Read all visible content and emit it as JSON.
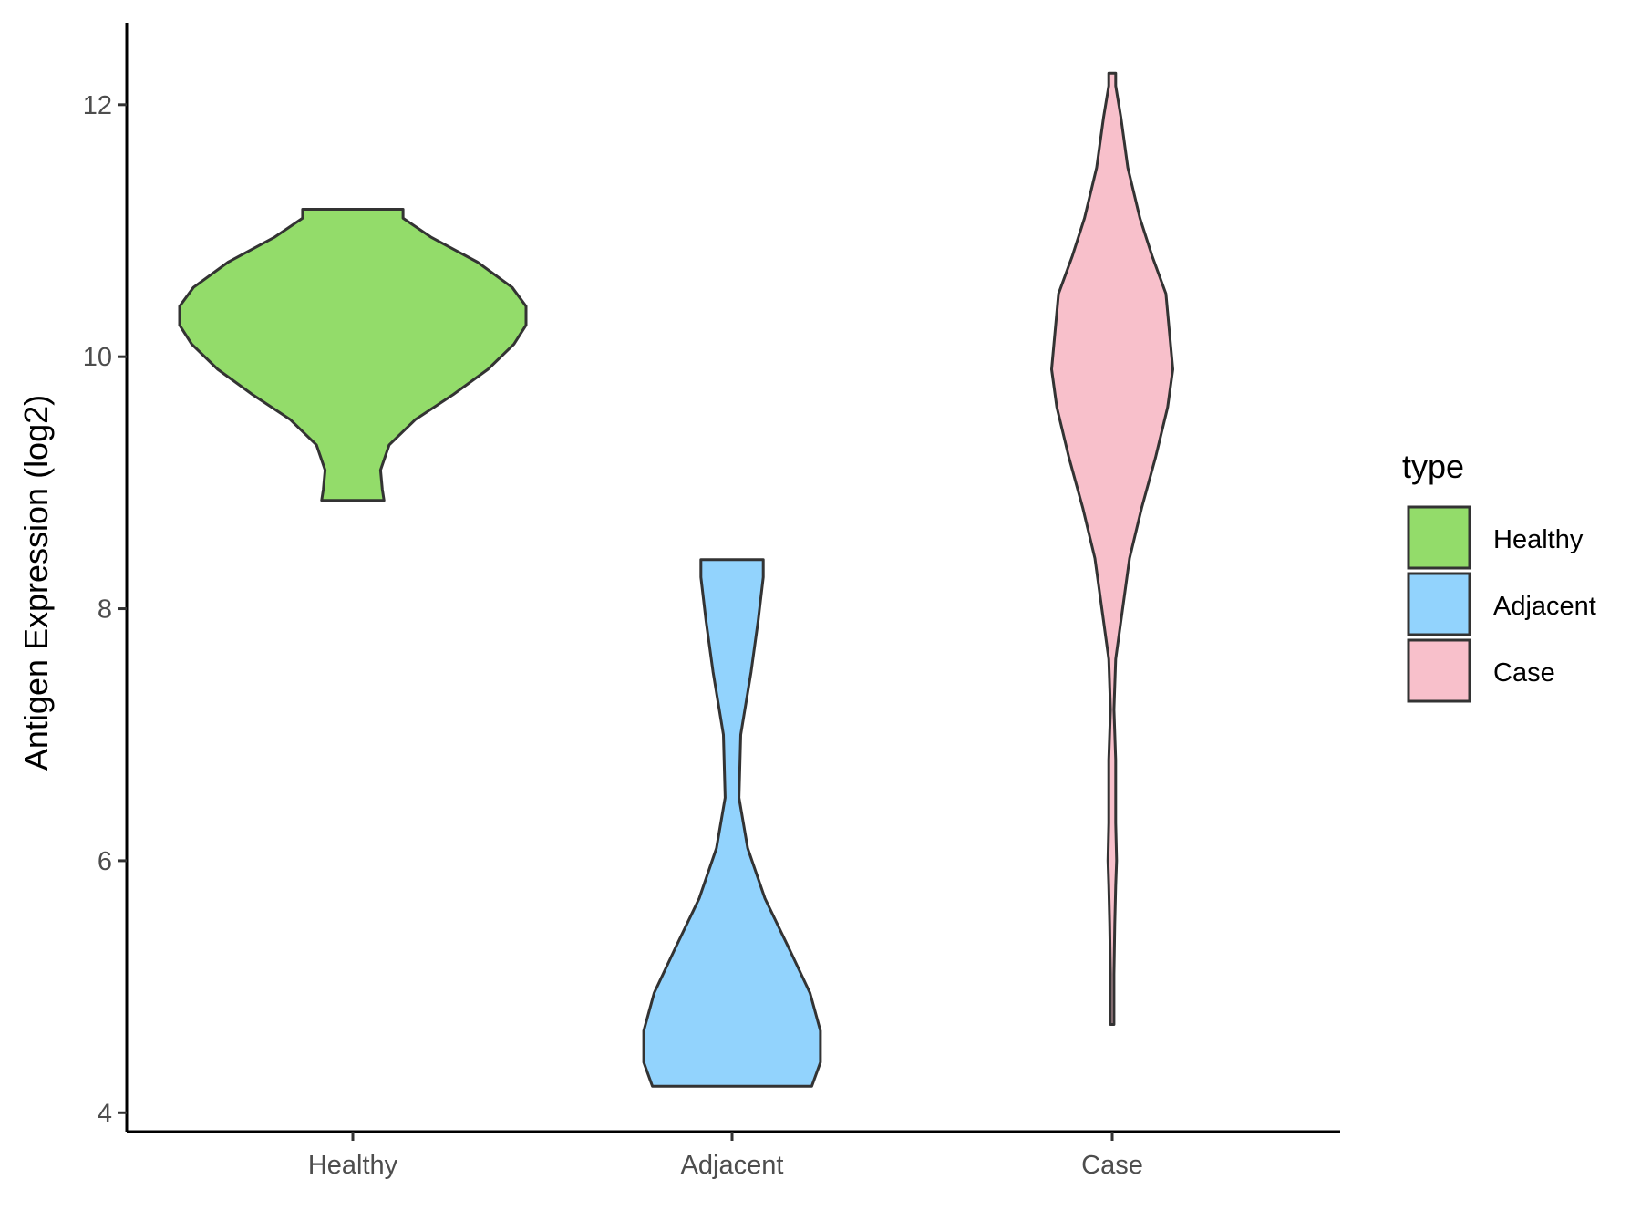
{
  "chart_data": {
    "type": "violin",
    "title": "",
    "xlabel": "",
    "ylabel": "Antigen Expression (log2)",
    "ylim": [
      3.85,
      12.65
    ],
    "yticks": [
      4,
      6,
      8,
      10,
      12
    ],
    "categories": [
      "Healthy",
      "Adjacent",
      "Case"
    ],
    "grid": false,
    "legend": {
      "title": "type",
      "position": "right",
      "entries": [
        "Healthy",
        "Adjacent",
        "Case"
      ]
    },
    "series": [
      {
        "category": "Healthy",
        "color": "#93dc6a",
        "min": 8.86,
        "max": 11.17,
        "profile": [
          [
            8.86,
            0.18
          ],
          [
            8.95,
            0.17
          ],
          [
            9.1,
            0.16
          ],
          [
            9.3,
            0.21
          ],
          [
            9.5,
            0.36
          ],
          [
            9.7,
            0.58
          ],
          [
            9.9,
            0.78
          ],
          [
            10.1,
            0.93
          ],
          [
            10.25,
            1.0
          ],
          [
            10.4,
            1.0
          ],
          [
            10.55,
            0.92
          ],
          [
            10.75,
            0.72
          ],
          [
            10.95,
            0.45
          ],
          [
            11.1,
            0.29
          ],
          [
            11.17,
            0.29
          ]
        ]
      },
      {
        "category": "Adjacent",
        "color": "#92d3fd",
        "min": 4.21,
        "max": 8.39,
        "profile": [
          [
            4.21,
            0.46
          ],
          [
            4.4,
            0.51
          ],
          [
            4.65,
            0.51
          ],
          [
            4.95,
            0.45
          ],
          [
            5.3,
            0.33
          ],
          [
            5.7,
            0.19
          ],
          [
            6.1,
            0.09
          ],
          [
            6.5,
            0.04
          ],
          [
            7.0,
            0.05
          ],
          [
            7.5,
            0.11
          ],
          [
            7.9,
            0.15
          ],
          [
            8.25,
            0.18
          ],
          [
            8.39,
            0.18
          ]
        ]
      },
      {
        "category": "Case",
        "color": "#f8c0cb",
        "min": 4.7,
        "max": 12.25,
        "profile": [
          [
            4.7,
            0.01
          ],
          [
            4.8,
            0.01
          ],
          [
            5.1,
            0.01
          ],
          [
            5.5,
            0.015
          ],
          [
            5.8,
            0.02
          ],
          [
            6.0,
            0.025
          ],
          [
            6.3,
            0.02
          ],
          [
            6.8,
            0.02
          ],
          [
            7.2,
            0.01
          ],
          [
            7.6,
            0.02
          ],
          [
            8.0,
            0.06
          ],
          [
            8.4,
            0.1
          ],
          [
            8.8,
            0.17
          ],
          [
            9.2,
            0.25
          ],
          [
            9.6,
            0.32
          ],
          [
            9.9,
            0.35
          ],
          [
            10.2,
            0.33
          ],
          [
            10.5,
            0.31
          ],
          [
            10.8,
            0.23
          ],
          [
            11.1,
            0.16
          ],
          [
            11.5,
            0.09
          ],
          [
            11.9,
            0.05
          ],
          [
            12.15,
            0.02
          ],
          [
            12.25,
            0.02
          ]
        ]
      }
    ]
  }
}
